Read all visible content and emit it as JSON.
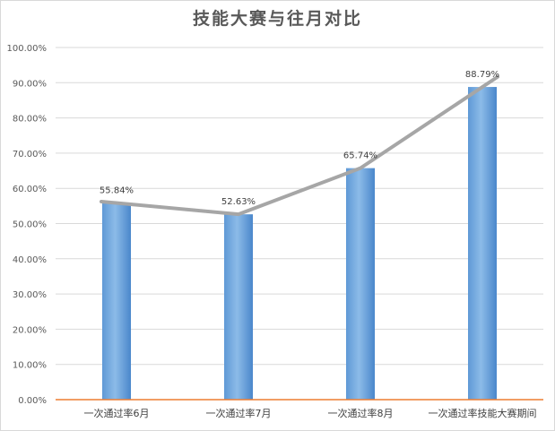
{
  "chart_data": {
    "type": "bar",
    "title": "技能大赛与往月对比",
    "categories": [
      "一次通过率6月",
      "一次通过率7月",
      "一次通过率8月",
      "一次通过率技能大赛期间"
    ],
    "values": [
      55.84,
      52.63,
      65.74,
      88.79
    ],
    "data_labels": [
      "55.84%",
      "52.63%",
      "65.74%",
      "88.79%"
    ],
    "line_overlay": true,
    "ylim": [
      0,
      100
    ],
    "y_ticks": [
      "0.00%",
      "10.00%",
      "20.00%",
      "30.00%",
      "40.00%",
      "50.00%",
      "60.00%",
      "70.00%",
      "80.00%",
      "90.00%",
      "100.00%"
    ],
    "grid": true,
    "legend": "none",
    "colors": {
      "bar_light": "#7fb0e0",
      "bar_dark": "#3f7fc4",
      "line": "#a6a6a6",
      "axis": "#ed7d31",
      "grid": "#d9d9d9"
    }
  }
}
